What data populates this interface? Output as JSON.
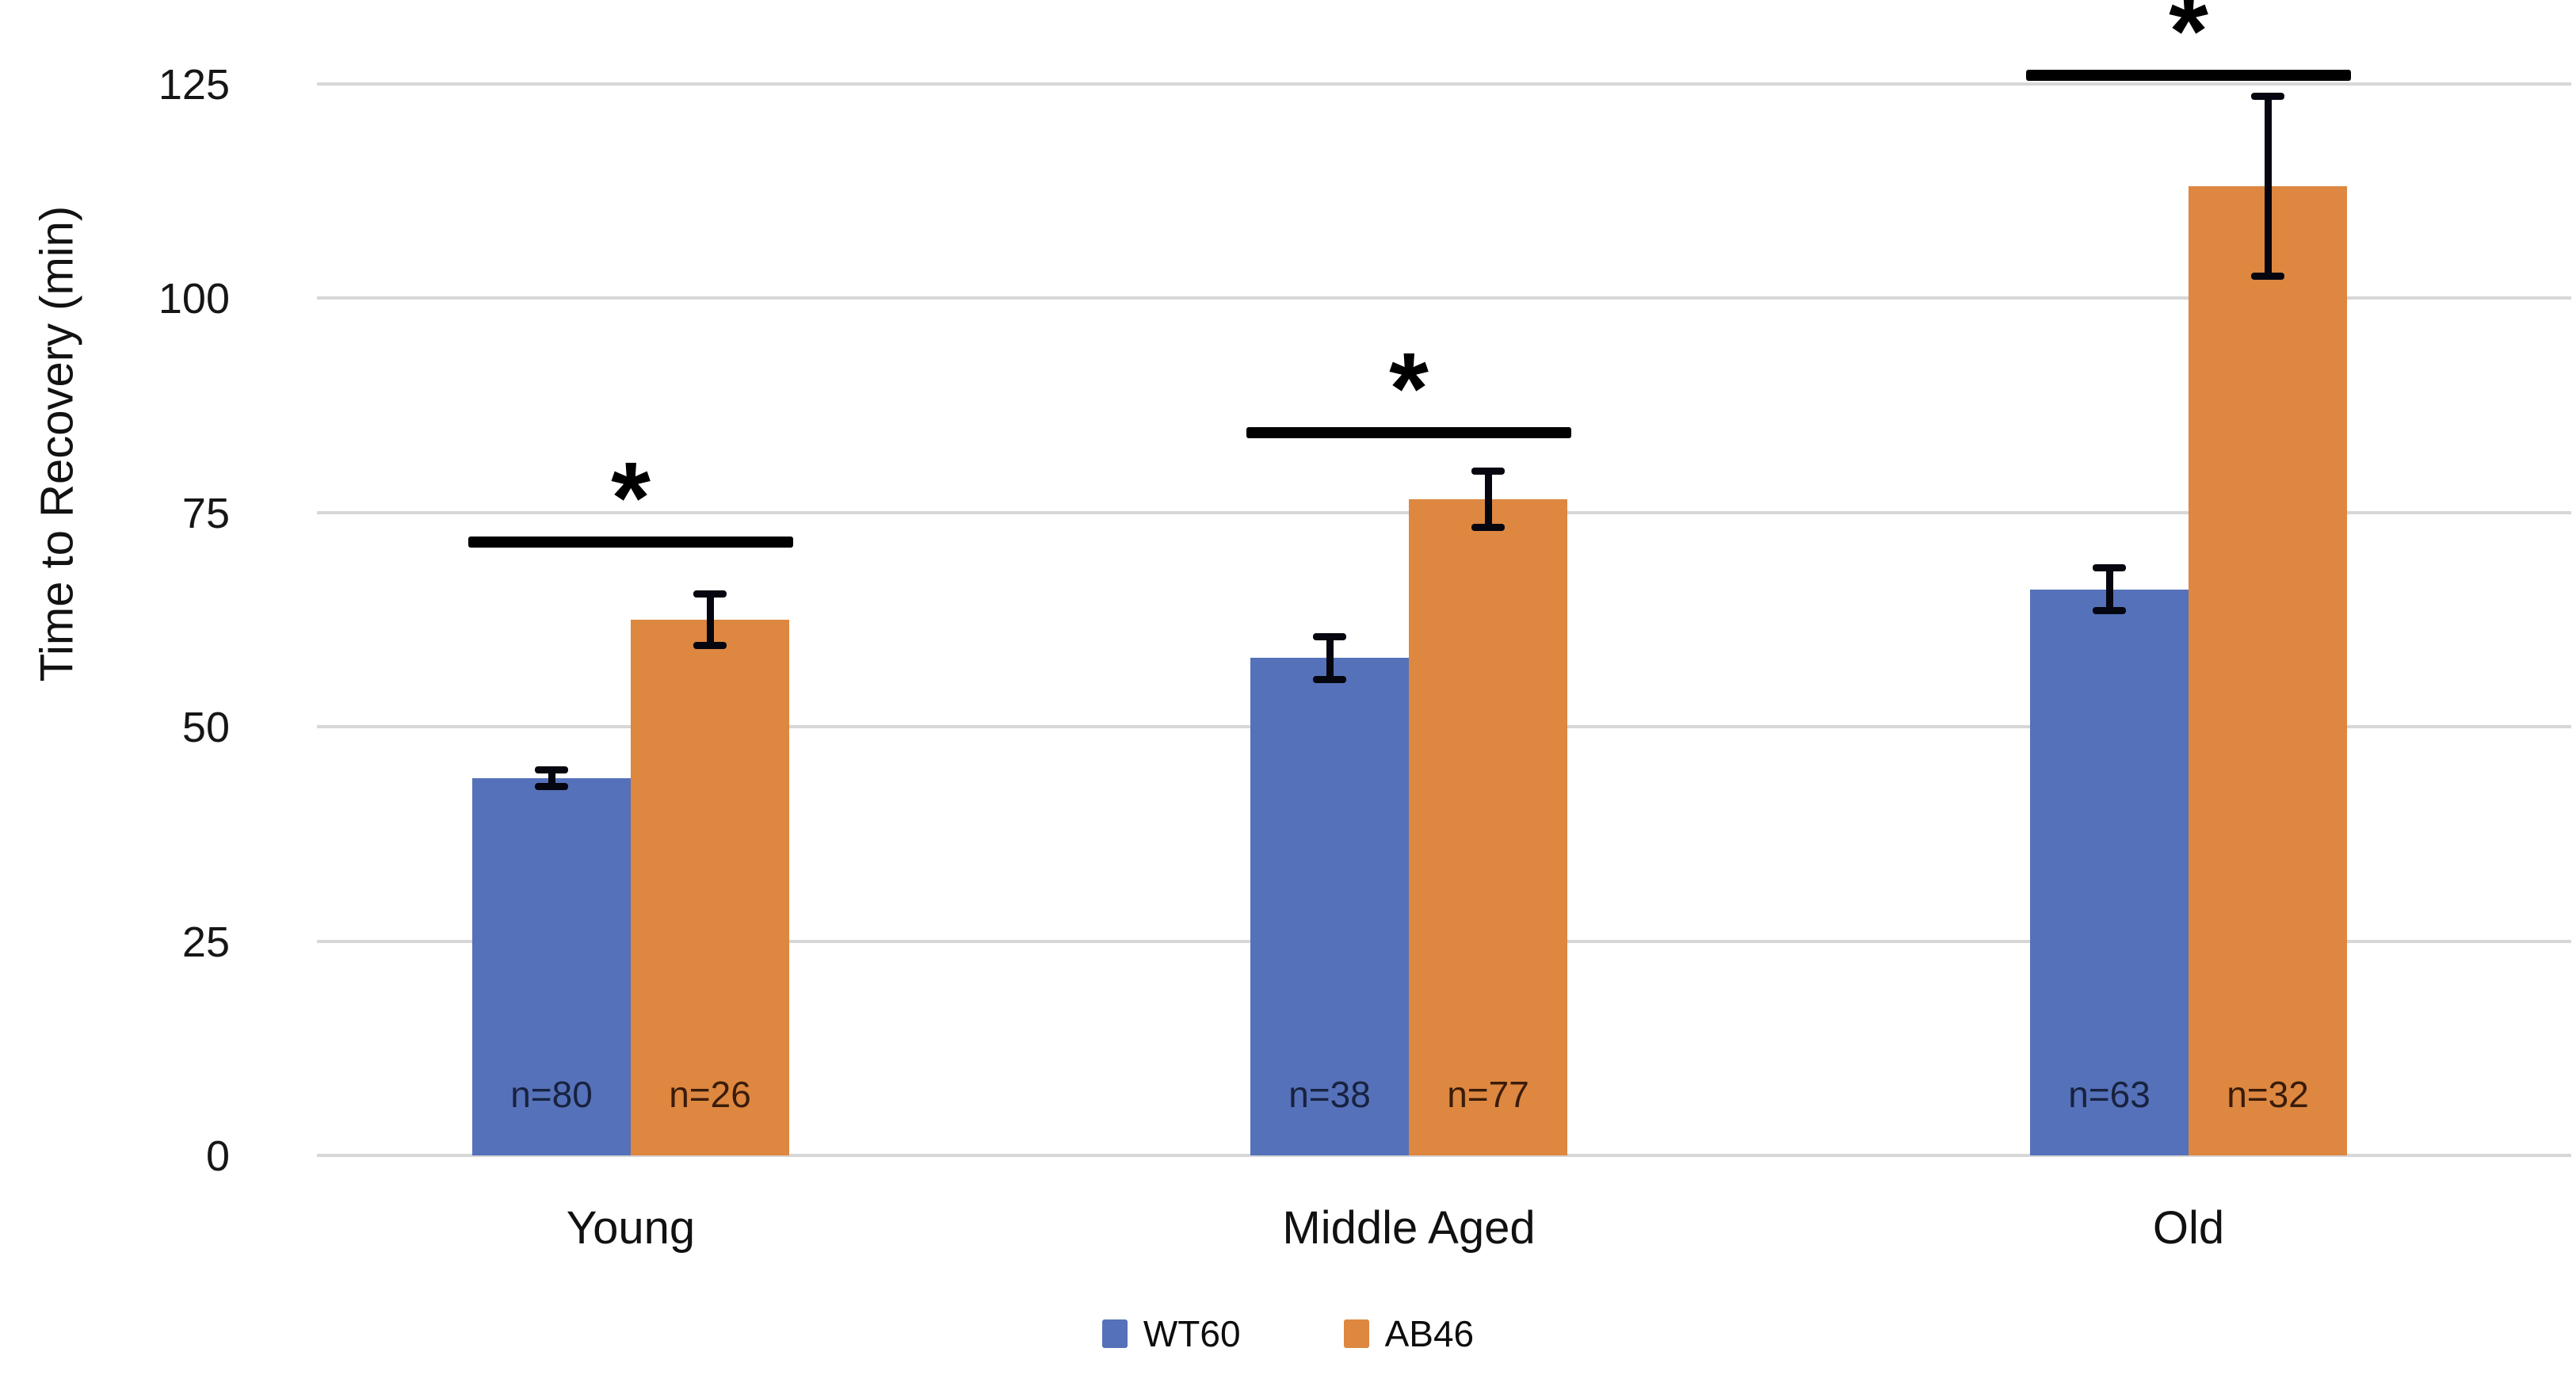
{
  "chart_data": {
    "type": "bar",
    "title": "",
    "xlabel": "",
    "ylabel": "Time to Recovery (min)",
    "categories": [
      "Young",
      "Middle Aged",
      "Old"
    ],
    "series": [
      {
        "name": "WT60",
        "color": "#5571b9",
        "values": [
          44,
          58,
          66
        ],
        "errors": [
          1,
          2.5,
          2.5
        ],
        "n_labels": [
          "n=80",
          "n=38",
          "n=63"
        ]
      },
      {
        "name": "AB46",
        "color": "#dd8740",
        "values": [
          62.5,
          76.5,
          113
        ],
        "errors": [
          3,
          3.3,
          10.5
        ],
        "n_labels": [
          "n=26",
          "n=77",
          "n=32"
        ]
      }
    ],
    "yticks": [
      0,
      25,
      50,
      75,
      100,
      125
    ],
    "ylim": [
      0,
      130
    ],
    "grid": true,
    "legend_position": "bottom",
    "significance": [
      {
        "group": "Young",
        "label": "*",
        "line_value": 71.5
      },
      {
        "group": "Middle Aged",
        "label": "*",
        "line_value": 84.3
      },
      {
        "group": "Old",
        "label": "*",
        "line_value": 126
      }
    ],
    "colors": {
      "grid": "#d7d7d7",
      "error_bar": "#05060f",
      "significance": "#000000",
      "n_label_on_wt60": "#18223f",
      "n_label_on_ab46": "#3a1c0a"
    }
  }
}
